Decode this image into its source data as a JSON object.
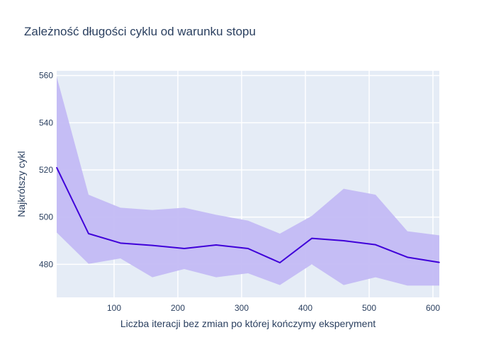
{
  "chart_data": {
    "type": "line",
    "title": "Zależność długości cyklu od warunku stopu",
    "xlabel": "Liczba iteracji bez zmian po której kończymy eksperyment",
    "ylabel": "Najkrótszy cykl",
    "xlim": [
      10,
      610
    ],
    "ylim": [
      466,
      562
    ],
    "xticks": [
      100,
      200,
      300,
      400,
      500,
      600
    ],
    "yticks": [
      480,
      500,
      520,
      540,
      560
    ],
    "grid": true,
    "legend": "none",
    "x": [
      10,
      60,
      110,
      160,
      210,
      260,
      310,
      360,
      410,
      460,
      510,
      560,
      610
    ],
    "series": [
      {
        "values": [
          521,
          493,
          489,
          488,
          486.7,
          488.2,
          486.7,
          480.7,
          491,
          490,
          488.3,
          483,
          480.8
        ],
        "color": "#3f00d9"
      }
    ],
    "band": {
      "upper": [
        559.5,
        509.5,
        504,
        503,
        504,
        501,
        498.5,
        493,
        500.5,
        512,
        509.5,
        494,
        492.3
      ],
      "lower": [
        493.5,
        480.2,
        482.5,
        474.5,
        478,
        474.5,
        476.2,
        471.2,
        480,
        471.2,
        474.5,
        471,
        471
      ],
      "color": "#c3bbf4"
    },
    "colors": {
      "plot_background": "#e5ecf6",
      "grid": "#ffffff",
      "text": "#2a3f5f"
    }
  }
}
